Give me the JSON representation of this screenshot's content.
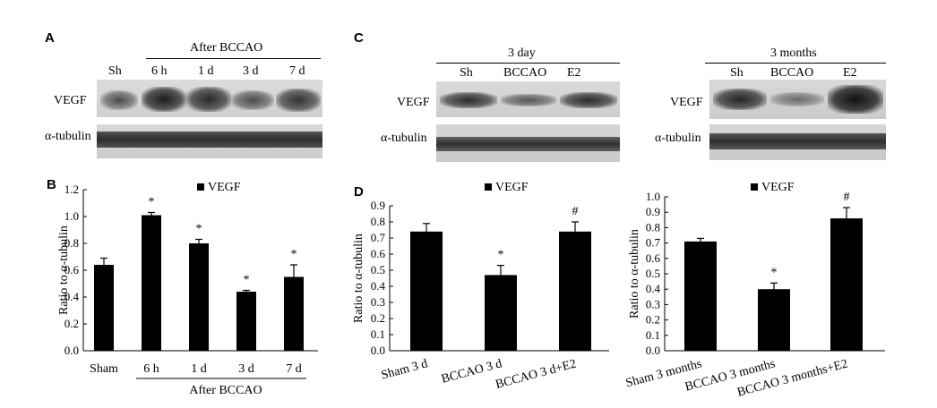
{
  "panels": {
    "A": {
      "letter": "A",
      "group_label": "After BCCAO",
      "lanes": [
        "Sh",
        "6 h",
        "1 d",
        "3 d",
        "7 d"
      ],
      "rows": [
        "VEGF",
        "α-tubulin"
      ]
    },
    "C": {
      "letter": "C",
      "left": {
        "group_label": "3 day",
        "lanes": [
          "Sh",
          "BCCAO",
          "E2"
        ],
        "rows": [
          "VEGF",
          "α-tubulin"
        ]
      },
      "right": {
        "group_label": "3 months",
        "lanes": [
          "Sh",
          "BCCAO",
          "E2"
        ],
        "rows": [
          "VEGF",
          "α-tubulin"
        ]
      }
    },
    "B": {
      "letter": "B",
      "group_label": "After BCCAO"
    },
    "D": {
      "letter": "D"
    }
  },
  "chart_data": [
    {
      "id": "B",
      "type": "bar",
      "categories": [
        "Sham",
        "6 h",
        "1 d",
        "3 d",
        "7 d"
      ],
      "values": [
        0.64,
        1.01,
        0.8,
        0.44,
        0.55
      ],
      "errors": [
        0.05,
        0.02,
        0.03,
        0.01,
        0.09
      ],
      "markers": [
        "",
        "*",
        "*",
        "*",
        "*"
      ],
      "ylabel": "Ratio to α-tubulin",
      "ylim": [
        0,
        1.2
      ],
      "yticks": [
        "0.0",
        "0.2",
        "0.4",
        "0.6",
        "0.8",
        "1.0",
        "1.2"
      ],
      "legend": "VEGF",
      "bar_color": "#000000"
    },
    {
      "id": "D1",
      "type": "bar",
      "categories": [
        "Sham 3 d",
        "BCCAO 3 d",
        "BCCAO 3 d+E2"
      ],
      "values": [
        0.74,
        0.47,
        0.74
      ],
      "errors": [
        0.05,
        0.06,
        0.06
      ],
      "markers": [
        "",
        "*",
        "#"
      ],
      "ylabel": "Ratio to α-tubulin",
      "ylim": [
        0,
        0.9
      ],
      "yticks": [
        "0.0",
        "0.1",
        "0.2",
        "0.3",
        "0.4",
        "0.5",
        "0.6",
        "0.7",
        "0.8",
        "0.9"
      ],
      "legend": "VEGF",
      "bar_color": "#000000"
    },
    {
      "id": "D2",
      "type": "bar",
      "categories": [
        "Sham 3 months",
        "BCCAO 3 months",
        "BCCAO 3 months+E2"
      ],
      "values": [
        0.71,
        0.4,
        0.86
      ],
      "errors": [
        0.02,
        0.04,
        0.07
      ],
      "markers": [
        "",
        "*",
        "#"
      ],
      "ylabel": "Ratio to α-tubulin",
      "ylim": [
        0,
        1.0
      ],
      "yticks": [
        "0.0",
        "0.1",
        "0.2",
        "0.3",
        "0.4",
        "0.5",
        "0.6",
        "0.7",
        "0.8",
        "0.9",
        "1.0"
      ],
      "legend": "VEGF",
      "bar_color": "#000000"
    }
  ]
}
